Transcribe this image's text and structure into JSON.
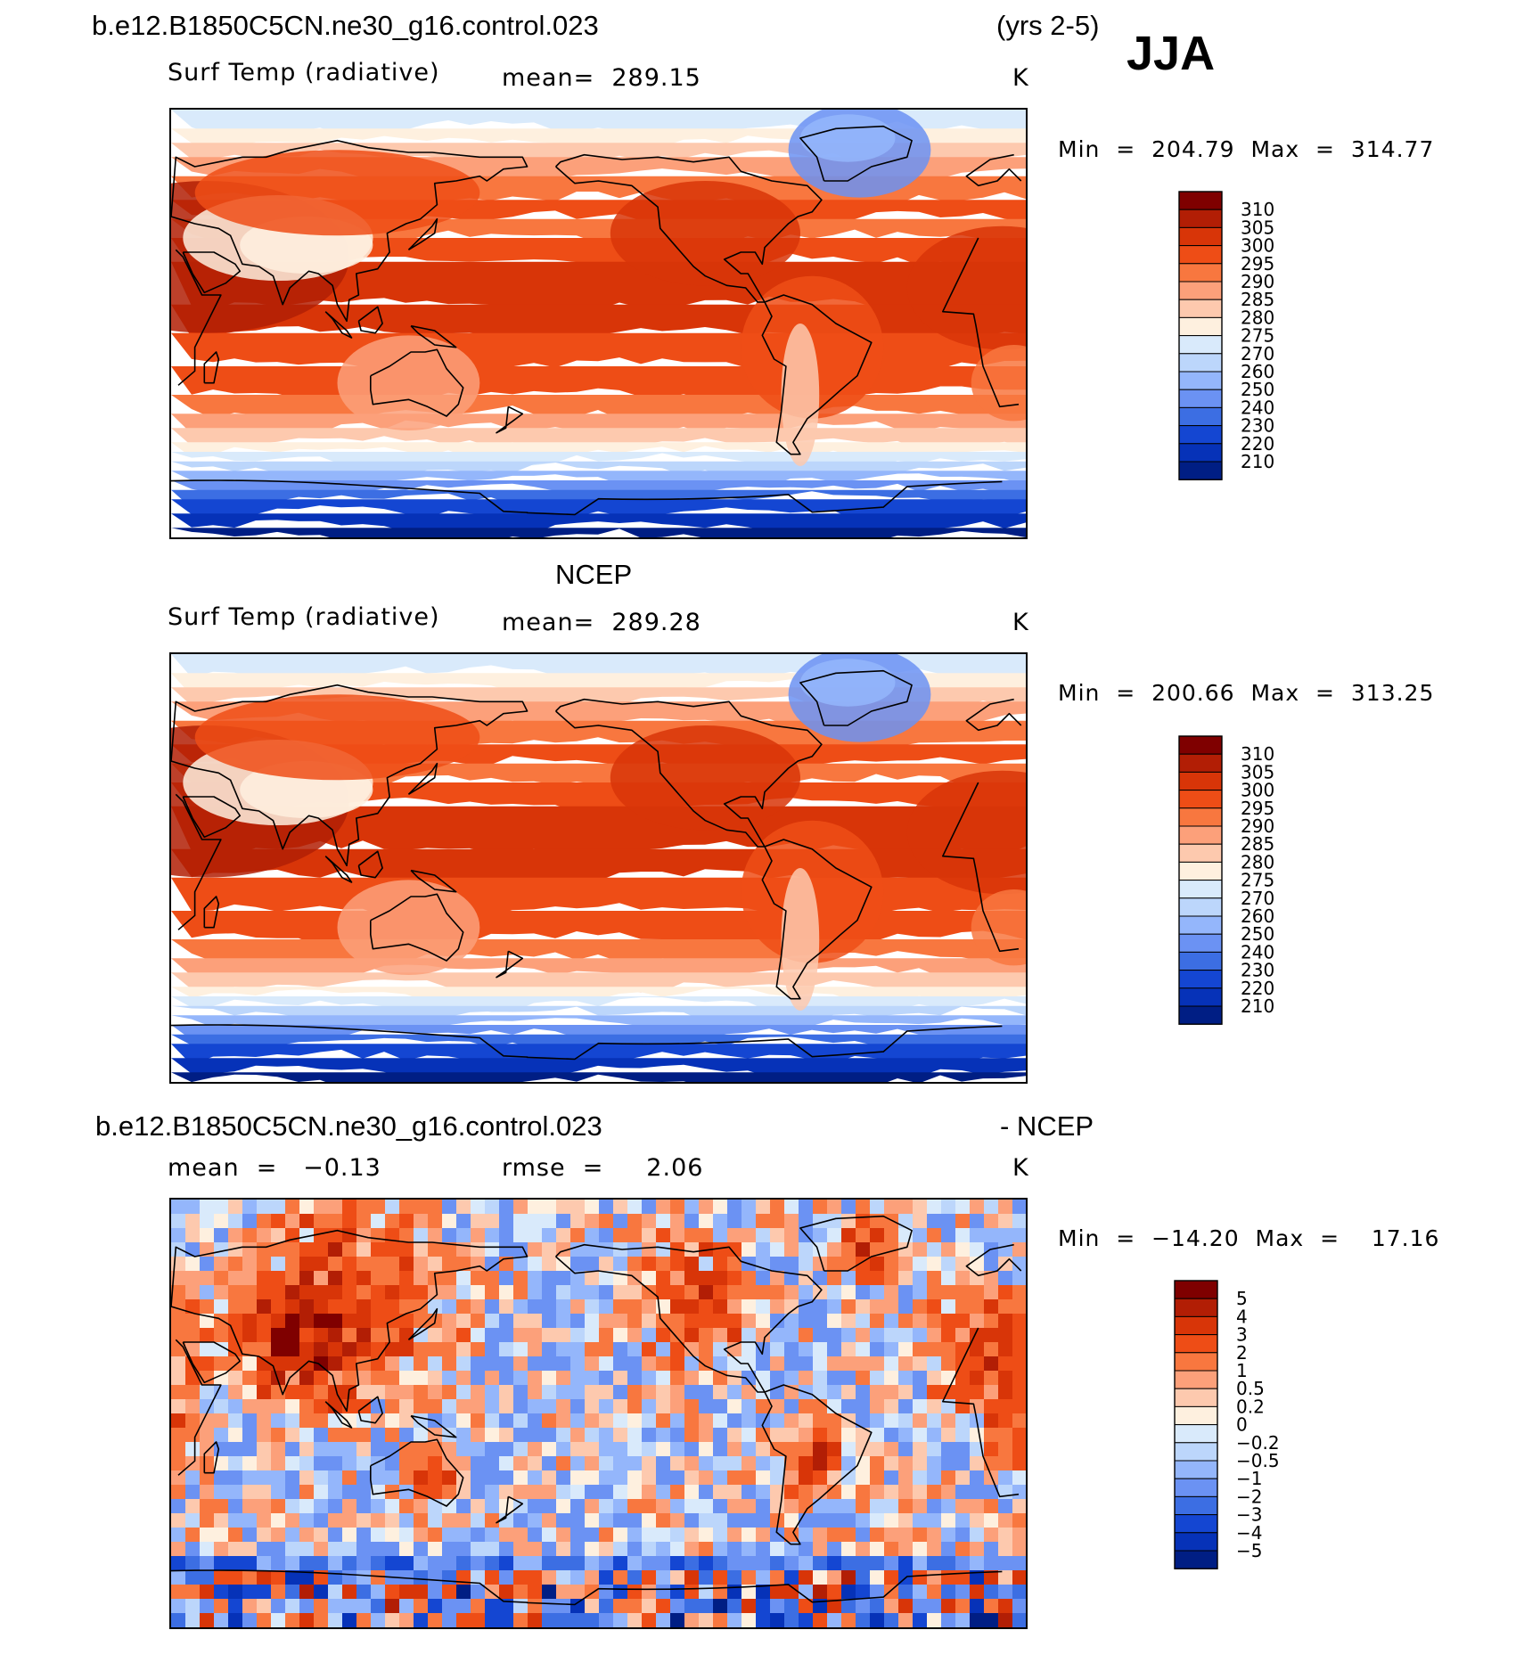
{
  "header": {
    "case_name": "b.e12.B1850C5CN.ne30_g16.control.023",
    "years": "(yrs 2-5)",
    "season": "JJA"
  },
  "panels": [
    {
      "id": "model",
      "variable": "Surf Temp (radiative)",
      "stat_text": "mean=  289.15",
      "units": "K",
      "minmax": "Min  =  204.79  Max  =  314.77"
    },
    {
      "id": "obs",
      "title": "NCEP",
      "variable": "Surf Temp (radiative)",
      "stat_text": "mean=  289.28",
      "units": "K",
      "minmax": "Min  =  200.66  Max  =  313.25"
    },
    {
      "id": "diff",
      "title_left": "b.e12.B1850C5CN.ne30_g16.control.023",
      "title_right": "- NCEP",
      "mean_text": "mean  =   −0.13",
      "rmse_text": "rmse  =     2.06",
      "units": "K",
      "minmax": "Min  =  −14.20  Max  =    17.16"
    }
  ],
  "chart_data": [
    {
      "type": "heatmap",
      "title": "Surf Temp (radiative)",
      "projection": "global cylindrical equidistant, centered on Pacific",
      "units": "K",
      "mean": 289.15,
      "min": 204.79,
      "max": 314.77,
      "levels": [
        "310",
        "305",
        "300",
        "295",
        "290",
        "285",
        "280",
        "275",
        "270",
        "260",
        "250",
        "240",
        "230",
        "220",
        "210"
      ],
      "colors": [
        "#7f0000",
        "#b21e05",
        "#d83508",
        "#ee4d16",
        "#f8773f",
        "#fca07a",
        "#fdc9ae",
        "#fef0df",
        "#d9eafb",
        "#bcd6fb",
        "#94b6fb",
        "#6b92f3",
        "#3c6ee3",
        "#1446d2",
        "#0632b8",
        "#001e84"
      ]
    },
    {
      "type": "heatmap",
      "title": "NCEP Surf Temp (radiative)",
      "projection": "global cylindrical equidistant, centered on Pacific",
      "units": "K",
      "mean": 289.28,
      "min": 200.66,
      "max": 313.25,
      "levels": [
        "310",
        "305",
        "300",
        "295",
        "290",
        "285",
        "280",
        "275",
        "270",
        "260",
        "250",
        "240",
        "230",
        "220",
        "210"
      ],
      "colors": [
        "#7f0000",
        "#b21e05",
        "#d83508",
        "#ee4d16",
        "#f8773f",
        "#fca07a",
        "#fdc9ae",
        "#fef0df",
        "#d9eafb",
        "#bcd6fb",
        "#94b6fb",
        "#6b92f3",
        "#3c6ee3",
        "#1446d2",
        "#0632b8",
        "#001e84"
      ]
    },
    {
      "type": "heatmap",
      "title": "Model - NCEP difference",
      "units": "K",
      "mean": -0.13,
      "rmse": 2.06,
      "min": -14.2,
      "max": 17.16,
      "levels": [
        "5",
        "4",
        "3",
        "2",
        "1",
        "0.5",
        "0.2",
        "0",
        "−0.2",
        "−0.5",
        "−1",
        "−2",
        "−3",
        "−4",
        "−5"
      ],
      "colors": [
        "#7f0000",
        "#b21e05",
        "#d83508",
        "#ee4d16",
        "#f8773f",
        "#fca07a",
        "#fdc9ae",
        "#fef0df",
        "#d9eafb",
        "#bcd6fb",
        "#94b6fb",
        "#6b92f3",
        "#3c6ee3",
        "#1446d2",
        "#0632b8",
        "#001e84"
      ]
    }
  ]
}
